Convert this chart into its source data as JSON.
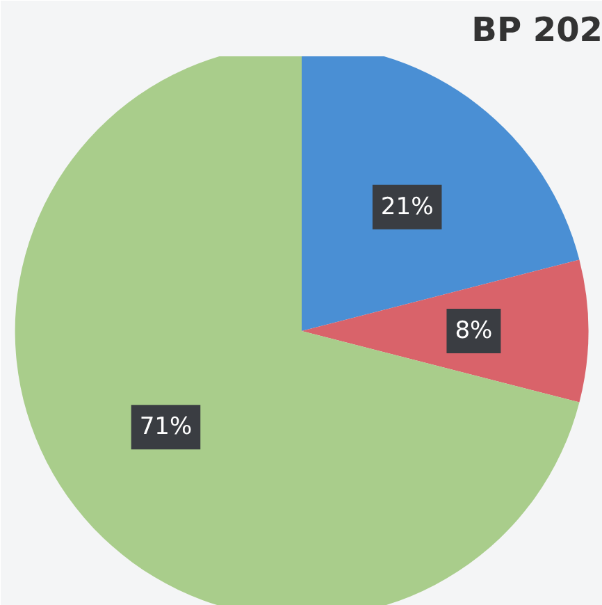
{
  "chart_data": {
    "type": "pie",
    "title": "BP 202",
    "categories": [
      null,
      null,
      null
    ],
    "values": [
      21,
      8,
      71
    ],
    "colors": [
      "#4a8fd4",
      "#d9636a",
      "#a9cd8b"
    ],
    "value_labels": [
      "21%",
      "8%",
      "71%"
    ]
  }
}
